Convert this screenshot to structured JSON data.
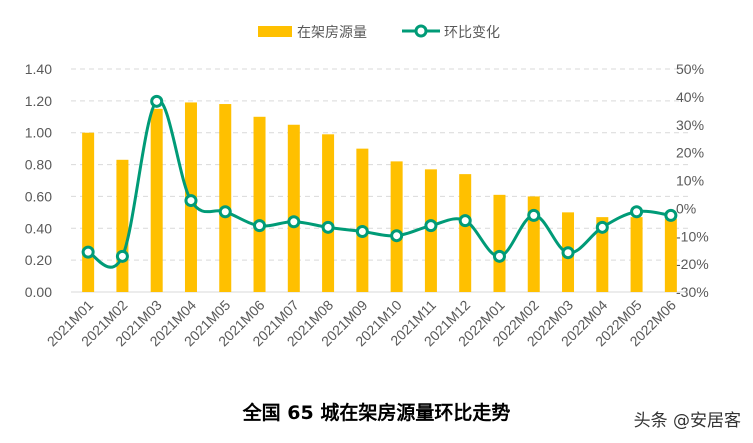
{
  "chart_data": {
    "type": "bar+line",
    "title": "全国 65 城在架房源量环比走势",
    "legend_position": "top",
    "grid": true,
    "categories": [
      "2021M01",
      "2021M02",
      "2021M03",
      "2021M04",
      "2021M05",
      "2021M06",
      "2021M07",
      "2021M08",
      "2021M09",
      "2021M10",
      "2021M11",
      "2021M12",
      "2022M01",
      "2022M02",
      "2022M03",
      "2022M04",
      "2022M05",
      "2022M06"
    ],
    "series": [
      {
        "name": "在架房源量",
        "type": "bar",
        "axis": "left",
        "color": "#FFC000",
        "values": [
          1.0,
          0.83,
          1.15,
          1.19,
          1.18,
          1.1,
          1.05,
          0.99,
          0.9,
          0.82,
          0.77,
          0.74,
          0.61,
          0.6,
          0.5,
          0.47,
          0.47,
          0.46
        ]
      },
      {
        "name": "环比变化",
        "type": "line",
        "axis": "right",
        "color": "#009B77",
        "values": [
          -15.7,
          -17.2,
          38.4,
          2.8,
          -1.2,
          -6.2,
          -4.8,
          -6.8,
          -8.3,
          -9.8,
          -6.2,
          -4.4,
          -17.2,
          -2.5,
          -15.9,
          -6.8,
          -1.2,
          -2.5
        ]
      }
    ],
    "left_axis": {
      "ylim": [
        0,
        1.4
      ],
      "ticks": [
        "0.00",
        "0.20",
        "0.40",
        "0.60",
        "0.80",
        "1.00",
        "1.20",
        "1.40"
      ]
    },
    "right_axis": {
      "ylim": [
        -30,
        50
      ],
      "unit": "%",
      "ticks": [
        "-30%",
        "-20%",
        "-10%",
        "0%",
        "10%",
        "20%",
        "30%",
        "40%",
        "50%"
      ]
    }
  },
  "watermark": "头条 @安居客"
}
